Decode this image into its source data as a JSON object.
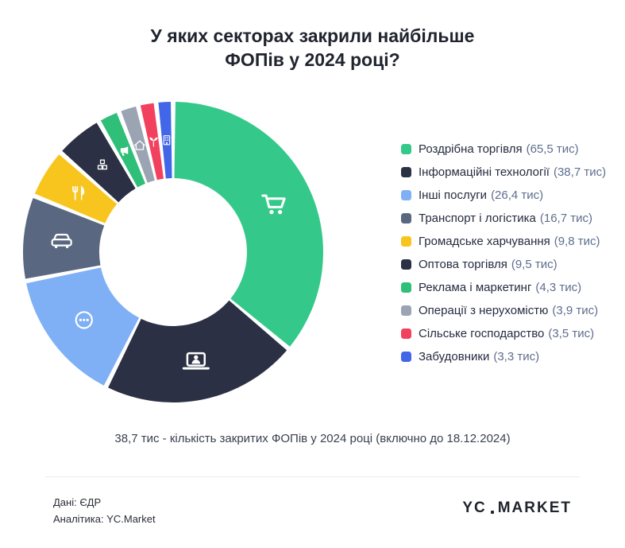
{
  "title_lines": [
    "У яких секторах закрили найбільше",
    "ФОПів у 2024 році?"
  ],
  "note": "38,7 тис - кількість закритих ФОПів у 2024 році (включно до 18.12.2024)",
  "footer": {
    "source_line1": "Дані:  ЄДР",
    "source_line2": "Аналітика: YC.Market",
    "logo_part1": "YC",
    "logo_part2": "MARKET"
  },
  "chart_data": {
    "type": "pie",
    "variant": "donut",
    "title": "У яких секторах закрили найбільше ФОПів у 2024 році?",
    "unit": "тис",
    "direction": "clockwise",
    "start_angle_deg": 0,
    "legend_position": "right",
    "series": [
      {
        "name": "Роздрібна торгівля",
        "value": 65.5,
        "display": "65,5 тис",
        "color": "#34c98a",
        "icon": "cart-icon"
      },
      {
        "name": "Інформаційні технології",
        "value": 38.7,
        "display": "38,7 тис",
        "color": "#2b3044",
        "icon": "laptop-user-icon"
      },
      {
        "name": "Інші послуги",
        "value": 26.4,
        "display": "26,4 тис",
        "color": "#7fb0f6",
        "icon": "chat-ellipsis-icon"
      },
      {
        "name": "Транспорт і логістика",
        "value": 16.7,
        "display": "16,7 тис",
        "color": "#596780",
        "icon": "car-icon"
      },
      {
        "name": "Громадське харчування",
        "value": 9.8,
        "display": "9,8 тис",
        "color": "#f8c51f",
        "icon": "utensils-icon"
      },
      {
        "name": "Оптова торгівля",
        "value": 9.5,
        "display": "9,5 тис",
        "color": "#2b3044",
        "icon": "boxes-icon"
      },
      {
        "name": "Реклама і маркетинг",
        "value": 4.3,
        "display": "4,3 тис",
        "color": "#2fbf78",
        "icon": "megaphone-icon"
      },
      {
        "name": "Операції з нерухомістю",
        "value": 3.9,
        "display": "3,9 тис",
        "color": "#9aa4b2",
        "icon": "home-icon"
      },
      {
        "name": "Сільське господарство",
        "value": 3.5,
        "display": "3,5 тис",
        "color": "#f2415f",
        "icon": "sprout-icon"
      },
      {
        "name": "Забудовники",
        "value": 3.3,
        "display": "3,3 тис",
        "color": "#4166e8",
        "icon": "building-icon"
      }
    ]
  }
}
